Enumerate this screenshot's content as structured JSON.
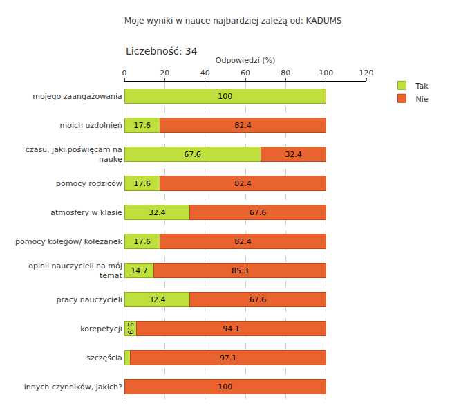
{
  "chart_data": {
    "type": "bar",
    "title": "Moje wyniki w nauce najbardziej zależą od: KADUMS",
    "subtitle": "Liczebność: 34",
    "x_label": "Odpowiedzi (%)",
    "orientation": "horizontal",
    "stacked": true,
    "data_labels": true,
    "grid": true,
    "legend": "top right",
    "categories": [
      "mojego zaangażowania",
      "moich uzdolnień",
      "czasu, jaki poświęcam na naukę",
      "pomocy rodziców",
      "atmosfery w klasie",
      "pomocy kolegów/ koleżanek",
      "opinii nauczycieli na mój temat",
      "pracy nauczycieli",
      "korepetycji",
      "szczęścia",
      "innych czynników, jakich?"
    ],
    "series": [
      {
        "name": "Tak",
        "color": "#bfe03c",
        "values": [
          100,
          17.6,
          67.6,
          17.6,
          32.4,
          17.6,
          14.7,
          32.4,
          5.9,
          2.9,
          0
        ],
        "value_labels": [
          "100",
          "17.6",
          "67.6",
          "17.6",
          "32.4",
          "17.6",
          "14.7",
          "32.4",
          "5.9",
          null,
          null
        ]
      },
      {
        "name": "Nie",
        "color": "#e8632e",
        "values": [
          0,
          82.4,
          32.4,
          82.4,
          67.6,
          82.4,
          85.3,
          67.6,
          94.1,
          97.1,
          100
        ],
        "value_labels": [
          null,
          "82.4",
          "32.4",
          "82.4",
          "67.6",
          "82.4",
          "85.3",
          "67.6",
          "94.1",
          "97.1",
          "100"
        ]
      }
    ],
    "xlim": [
      0,
      120
    ],
    "xticks": [
      0,
      20,
      40,
      60,
      80,
      100,
      120
    ]
  }
}
